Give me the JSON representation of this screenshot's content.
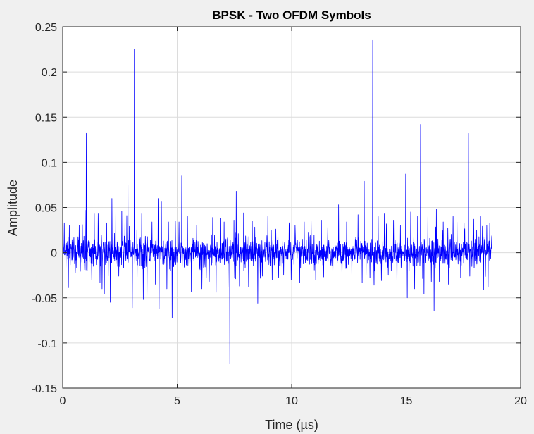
{
  "chart_data": {
    "type": "line",
    "title": "BPSK - Two OFDM Symbols",
    "xlabel": "Time (µs)",
    "ylabel": "Amplitude",
    "xlim": [
      0,
      20
    ],
    "ylim": [
      -0.15,
      0.25
    ],
    "xticks": [
      0,
      5,
      10,
      15,
      20
    ],
    "yticks": [
      -0.15,
      -0.1,
      -0.05,
      0,
      0.05,
      0.1,
      0.15,
      0.2,
      0.25
    ],
    "xtick_labels": [
      "0",
      "5",
      "10",
      "15",
      "20"
    ],
    "ytick_labels": [
      "-0.15",
      "-0.1",
      "-0.05",
      "0",
      "0.05",
      "0.1",
      "0.15",
      "0.2",
      "0.25"
    ],
    "grid": true,
    "series_color": "#0000ff",
    "background": "#f0f0f0",
    "plot_background": "#ffffff",
    "grid_color": "#dcdcdc",
    "sample_interval_us": 0.01,
    "signal_end_us": 18.75,
    "noise_amplitude": 0.012,
    "spikes": [
      {
        "x": 0.07,
        "y": 0.033
      },
      {
        "x": 0.14,
        "y": -0.021
      },
      {
        "x": 0.29,
        "y": 0.03
      },
      {
        "x": 0.55,
        "y": -0.022
      },
      {
        "x": 0.72,
        "y": 0.03
      },
      {
        "x": 0.86,
        "y": 0.031
      },
      {
        "x": 1.03,
        "y": 0.132
      },
      {
        "x": 0.98,
        "y": 0.047
      },
      {
        "x": 1.27,
        "y": -0.03
      },
      {
        "x": 1.38,
        "y": 0.043
      },
      {
        "x": 1.55,
        "y": 0.043
      },
      {
        "x": 1.63,
        "y": -0.033
      },
      {
        "x": 1.72,
        "y": -0.04
      },
      {
        "x": 1.82,
        "y": -0.046
      },
      {
        "x": 1.92,
        "y": 0.033
      },
      {
        "x": 2.08,
        "y": -0.055
      },
      {
        "x": 2.15,
        "y": 0.06
      },
      {
        "x": 2.32,
        "y": 0.045
      },
      {
        "x": 2.45,
        "y": -0.026
      },
      {
        "x": 2.58,
        "y": 0.046
      },
      {
        "x": 2.72,
        "y": 0.034
      },
      {
        "x": 2.8,
        "y": 0.041
      },
      {
        "x": 2.85,
        "y": 0.075
      },
      {
        "x": 3.04,
        "y": -0.061
      },
      {
        "x": 3.13,
        "y": 0.225
      },
      {
        "x": 3.25,
        "y": -0.027
      },
      {
        "x": 3.45,
        "y": 0.043
      },
      {
        "x": 3.52,
        "y": -0.052
      },
      {
        "x": 3.68,
        "y": -0.049
      },
      {
        "x": 3.9,
        "y": 0.034
      },
      {
        "x": 4.05,
        "y": -0.035
      },
      {
        "x": 4.17,
        "y": 0.06
      },
      {
        "x": 4.21,
        "y": -0.062
      },
      {
        "x": 4.31,
        "y": 0.057
      },
      {
        "x": 4.55,
        "y": -0.04
      },
      {
        "x": 4.62,
        "y": 0.034
      },
      {
        "x": 4.78,
        "y": -0.072
      },
      {
        "x": 4.92,
        "y": 0.035
      },
      {
        "x": 5.08,
        "y": 0.034
      },
      {
        "x": 5.2,
        "y": 0.085
      },
      {
        "x": 5.45,
        "y": 0.04
      },
      {
        "x": 5.62,
        "y": -0.043
      },
      {
        "x": 5.85,
        "y": 0.03
      },
      {
        "x": 6.08,
        "y": -0.04
      },
      {
        "x": 6.27,
        "y": -0.028
      },
      {
        "x": 6.4,
        "y": -0.032
      },
      {
        "x": 6.55,
        "y": 0.039
      },
      {
        "x": 6.7,
        "y": -0.044
      },
      {
        "x": 6.88,
        "y": 0.038
      },
      {
        "x": 7.05,
        "y": 0.034
      },
      {
        "x": 7.22,
        "y": -0.038
      },
      {
        "x": 7.3,
        "y": -0.123
      },
      {
        "x": 7.48,
        "y": 0.036
      },
      {
        "x": 7.58,
        "y": 0.068
      },
      {
        "x": 7.72,
        "y": -0.037
      },
      {
        "x": 7.9,
        "y": 0.044
      },
      {
        "x": 8.12,
        "y": -0.038
      },
      {
        "x": 8.28,
        "y": 0.035
      },
      {
        "x": 8.52,
        "y": -0.056
      },
      {
        "x": 8.72,
        "y": -0.026
      },
      {
        "x": 8.96,
        "y": 0.04
      },
      {
        "x": 9.15,
        "y": -0.03
      },
      {
        "x": 9.4,
        "y": 0.025
      },
      {
        "x": 9.65,
        "y": -0.025
      },
      {
        "x": 9.9,
        "y": 0.028
      },
      {
        "x": 10.15,
        "y": 0.03
      },
      {
        "x": 10.35,
        "y": -0.033
      },
      {
        "x": 10.55,
        "y": 0.034
      },
      {
        "x": 10.85,
        "y": 0.035
      },
      {
        "x": 11.05,
        "y": -0.03
      },
      {
        "x": 11.3,
        "y": 0.036
      },
      {
        "x": 11.58,
        "y": 0.028
      },
      {
        "x": 11.8,
        "y": -0.03
      },
      {
        "x": 12.05,
        "y": 0.053
      },
      {
        "x": 12.2,
        "y": -0.028
      },
      {
        "x": 12.4,
        "y": 0.034
      },
      {
        "x": 12.63,
        "y": -0.032
      },
      {
        "x": 12.9,
        "y": 0.042
      },
      {
        "x": 13.08,
        "y": -0.033
      },
      {
        "x": 13.17,
        "y": 0.079
      },
      {
        "x": 13.25,
        "y": -0.025
      },
      {
        "x": 13.42,
        "y": -0.028
      },
      {
        "x": 13.54,
        "y": 0.235
      },
      {
        "x": 13.6,
        "y": -0.036
      },
      {
        "x": 13.78,
        "y": 0.04
      },
      {
        "x": 13.92,
        "y": -0.031
      },
      {
        "x": 14.05,
        "y": 0.043
      },
      {
        "x": 14.22,
        "y": -0.025
      },
      {
        "x": 14.45,
        "y": 0.036
      },
      {
        "x": 14.6,
        "y": -0.044
      },
      {
        "x": 14.75,
        "y": 0.03
      },
      {
        "x": 14.98,
        "y": 0.087
      },
      {
        "x": 15.05,
        "y": -0.05
      },
      {
        "x": 15.2,
        "y": 0.045
      },
      {
        "x": 15.37,
        "y": -0.04
      },
      {
        "x": 15.5,
        "y": 0.04
      },
      {
        "x": 15.63,
        "y": 0.142
      },
      {
        "x": 15.78,
        "y": -0.046
      },
      {
        "x": 15.95,
        "y": 0.04
      },
      {
        "x": 16.1,
        "y": -0.032
      },
      {
        "x": 16.22,
        "y": -0.064
      },
      {
        "x": 16.32,
        "y": 0.048
      },
      {
        "x": 16.45,
        "y": -0.032
      },
      {
        "x": 16.62,
        "y": 0.034
      },
      {
        "x": 16.85,
        "y": -0.035
      },
      {
        "x": 17.05,
        "y": 0.04
      },
      {
        "x": 17.22,
        "y": 0.034
      },
      {
        "x": 17.38,
        "y": -0.028
      },
      {
        "x": 17.53,
        "y": 0.033
      },
      {
        "x": 17.72,
        "y": 0.132
      },
      {
        "x": 17.78,
        "y": -0.026
      },
      {
        "x": 17.95,
        "y": 0.037
      },
      {
        "x": 18.08,
        "y": 0.025
      },
      {
        "x": 18.25,
        "y": 0.04
      },
      {
        "x": 18.38,
        "y": -0.041
      },
      {
        "x": 18.52,
        "y": 0.03
      },
      {
        "x": 18.58,
        "y": -0.038
      },
      {
        "x": 18.65,
        "y": 0.033
      }
    ]
  }
}
